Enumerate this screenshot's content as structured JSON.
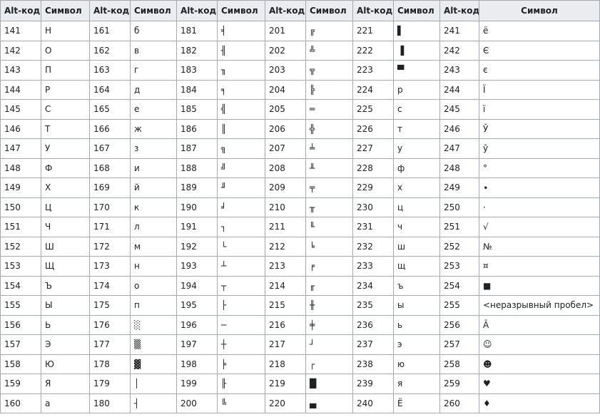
{
  "headers": [
    "Alt-код",
    "Символ",
    "Alt-код",
    "Символ",
    "Alt-код",
    "Символ",
    "Alt-код",
    "Символ",
    "Alt-код",
    "Символ",
    "Alt-код",
    "Символ"
  ],
  "rows": [
    [
      "141",
      "Н",
      "161",
      "б",
      "181",
      "╡",
      "201",
      "╔",
      "221",
      "▌",
      "241",
      "ё"
    ],
    [
      "142",
      "О",
      "162",
      "в",
      "182",
      "╢",
      "202",
      "╩",
      "222",
      "▐",
      "242",
      "Є"
    ],
    [
      "143",
      "П",
      "163",
      "г",
      "183",
      "╖",
      "203",
      "╦",
      "223",
      "▀",
      "243",
      "є"
    ],
    [
      "144",
      "Р",
      "164",
      "д",
      "184",
      "╕",
      "204",
      "╠",
      "224",
      "р",
      "244",
      "Ї"
    ],
    [
      "145",
      "С",
      "165",
      "е",
      "185",
      "╣",
      "205",
      "═",
      "225",
      "с",
      "245",
      "ї"
    ],
    [
      "146",
      "Т",
      "166",
      "ж",
      "186",
      "║",
      "206",
      "╬",
      "226",
      "т",
      "246",
      "Ў"
    ],
    [
      "147",
      "У",
      "167",
      "з",
      "187",
      "╗",
      "207",
      "╧",
      "227",
      "у",
      "247",
      "ў"
    ],
    [
      "148",
      "Ф",
      "168",
      "и",
      "188",
      "╝",
      "208",
      "╨",
      "228",
      "ф",
      "248",
      "°"
    ],
    [
      "149",
      "Х",
      "169",
      "й",
      "189",
      "╜",
      "209",
      "╤",
      "229",
      "х",
      "249",
      "∙"
    ],
    [
      "150",
      "Ц",
      "170",
      "к",
      "190",
      "╛",
      "210",
      "╥",
      "230",
      "ц",
      "250",
      "·"
    ],
    [
      "151",
      "Ч",
      "171",
      "л",
      "191",
      "┐",
      "211",
      "╙",
      "231",
      "ч",
      "251",
      "√"
    ],
    [
      "152",
      "Ш",
      "172",
      "м",
      "192",
      "└",
      "212",
      "╘",
      "232",
      "ш",
      "252",
      "№"
    ],
    [
      "153",
      "Щ",
      "173",
      "н",
      "193",
      "┴",
      "213",
      "╒",
      "233",
      "щ",
      "253",
      "¤"
    ],
    [
      "154",
      "Ъ",
      "174",
      "о",
      "194",
      "┬",
      "214",
      "╓",
      "234",
      "ъ",
      "254",
      "■"
    ],
    [
      "155",
      "Ы",
      "175",
      "п",
      "195",
      "├",
      "215",
      "╫",
      "235",
      "ы",
      "255",
      "<неразрывный пробел>"
    ],
    [
      "156",
      "Ь",
      "176",
      "░",
      "196",
      "─",
      "216",
      "╪",
      "236",
      "ь",
      "256",
      "Ā"
    ],
    [
      "157",
      "Э",
      "177",
      "▒",
      "197",
      "┼",
      "217",
      "┘",
      "237",
      "э",
      "257",
      "☺"
    ],
    [
      "158",
      "Ю",
      "178",
      "▓",
      "198",
      "╞",
      "218",
      "┌",
      "238",
      "ю",
      "258",
      "☻"
    ],
    [
      "159",
      "Я",
      "179",
      "│",
      "199",
      "╟",
      "219",
      "█",
      "239",
      "я",
      "259",
      "♥"
    ],
    [
      "160",
      "а",
      "180",
      "┤",
      "200",
      "╚",
      "220",
      "▄",
      "240",
      "Ё",
      "260",
      "♦"
    ]
  ]
}
